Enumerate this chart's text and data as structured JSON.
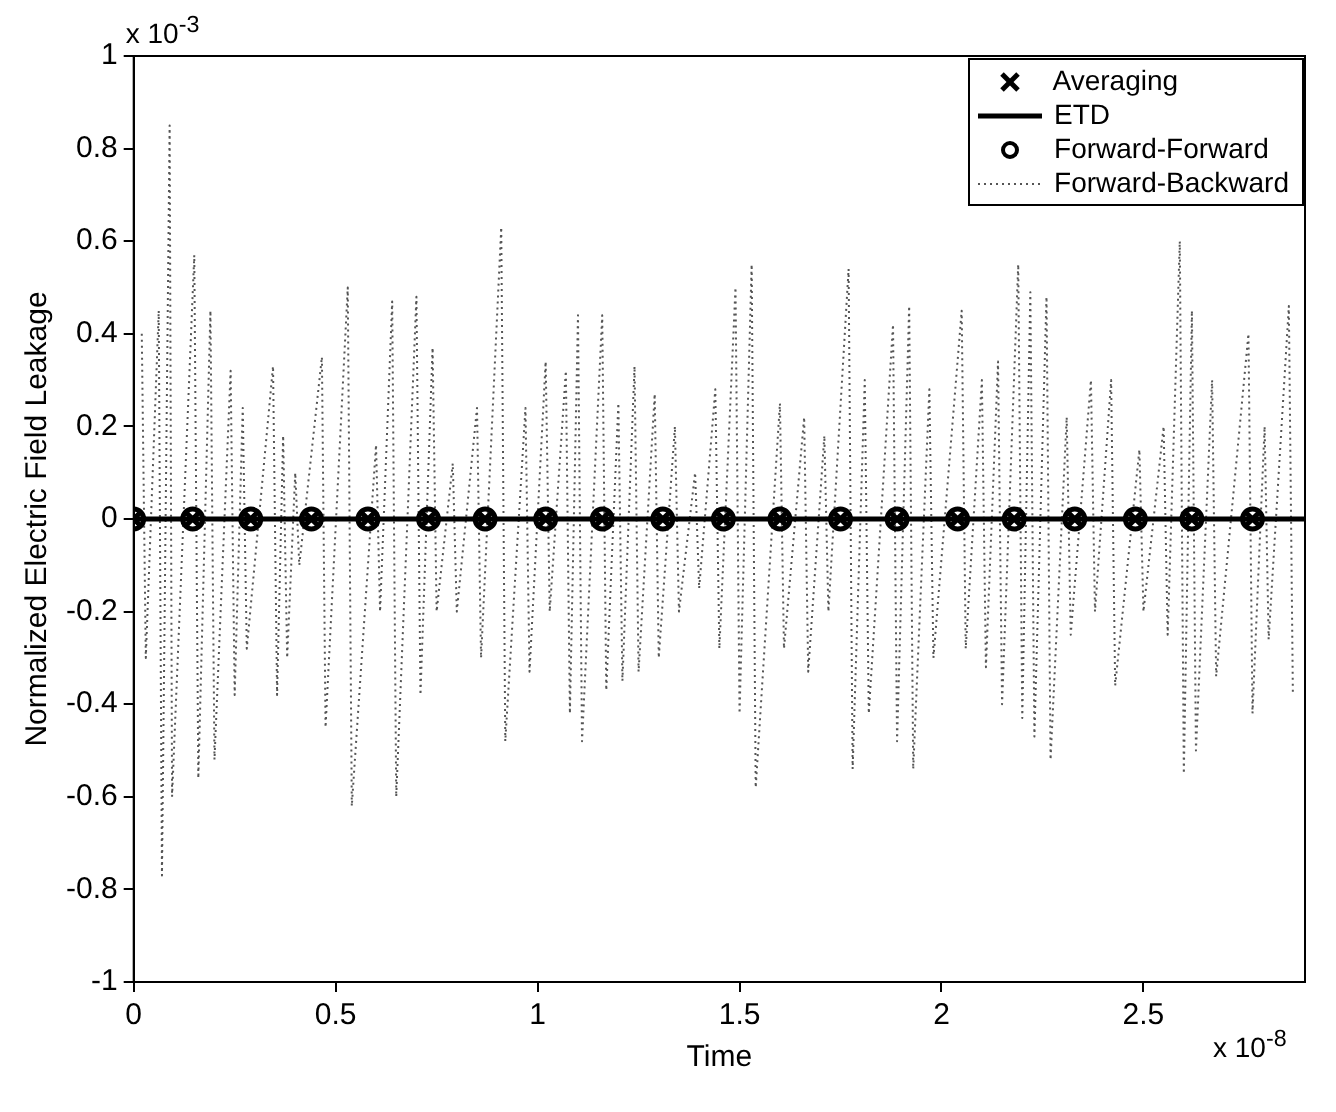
{
  "chart_data": {
    "type": "line",
    "xlabel": "Time",
    "ylabel": "Normalized Electric Field Leakage",
    "annotations": [
      "x 10$^{-3}$",
      "x 10$^{-8}$"
    ],
    "xlim": [
      0,
      2.9
    ],
    "xticks": [
      0,
      0.5,
      1,
      1.5,
      2,
      2.5
    ],
    "ylim": [
      -1,
      1
    ],
    "yticks": [
      -1,
      -0.8,
      -0.6,
      -0.4,
      -0.2,
      0,
      0.2,
      0.4,
      0.6,
      0.8,
      1
    ],
    "grid": false,
    "legend": "top right",
    "series": [
      {
        "name": "Forward-Backward",
        "type": "line",
        "line_style": "dotted",
        "marker": "none",
        "color": "#555555",
        "x": [
          0.02,
          0.03,
          0.062,
          0.07,
          0.089,
          0.095,
          0.15,
          0.16,
          0.19,
          0.2,
          0.24,
          0.25,
          0.27,
          0.28,
          0.345,
          0.355,
          0.37,
          0.38,
          0.4,
          0.41,
          0.466,
          0.475,
          0.53,
          0.54,
          0.6,
          0.61,
          0.64,
          0.65,
          0.7,
          0.71,
          0.74,
          0.75,
          0.79,
          0.8,
          0.85,
          0.86,
          0.91,
          0.92,
          0.97,
          0.98,
          1.02,
          1.03,
          1.07,
          1.08,
          1.1,
          1.11,
          1.16,
          1.17,
          1.2,
          1.21,
          1.24,
          1.25,
          1.29,
          1.3,
          1.34,
          1.35,
          1.39,
          1.4,
          1.44,
          1.45,
          1.49,
          1.5,
          1.53,
          1.54,
          1.6,
          1.61,
          1.66,
          1.67,
          1.71,
          1.72,
          1.77,
          1.78,
          1.81,
          1.82,
          1.88,
          1.89,
          1.92,
          1.93,
          1.97,
          1.98,
          2.05,
          2.06,
          2.1,
          2.11,
          2.14,
          2.15,
          2.19,
          2.2,
          2.22,
          2.23,
          2.26,
          2.27,
          2.31,
          2.32,
          2.37,
          2.38,
          2.42,
          2.43,
          2.49,
          2.5,
          2.55,
          2.56,
          2.59,
          2.6,
          2.62,
          2.63,
          2.67,
          2.68,
          2.76,
          2.77,
          2.8,
          2.81,
          2.86,
          2.87
        ],
        "values": [
          0.4,
          -0.3,
          0.45,
          -0.77,
          0.85,
          -0.6,
          0.57,
          -0.56,
          0.45,
          -0.52,
          0.32,
          -0.38,
          0.24,
          -0.28,
          0.33,
          -0.38,
          0.18,
          -0.3,
          0.1,
          -0.1,
          0.35,
          -0.45,
          0.5,
          -0.62,
          0.16,
          -0.2,
          0.47,
          -0.6,
          0.48,
          -0.38,
          0.37,
          -0.2,
          0.12,
          -0.2,
          0.24,
          -0.3,
          0.63,
          -0.48,
          0.24,
          -0.33,
          0.34,
          -0.2,
          0.32,
          -0.42,
          0.44,
          -0.48,
          0.44,
          -0.37,
          0.25,
          -0.35,
          0.33,
          -0.33,
          0.27,
          -0.3,
          0.2,
          -0.2,
          0.1,
          -0.15,
          0.28,
          -0.28,
          0.5,
          -0.42,
          0.55,
          -0.58,
          0.25,
          -0.28,
          0.22,
          -0.33,
          0.18,
          -0.2,
          0.54,
          -0.54,
          0.3,
          -0.42,
          0.42,
          -0.48,
          0.46,
          -0.54,
          0.28,
          -0.3,
          0.45,
          -0.28,
          0.3,
          -0.32,
          0.34,
          -0.4,
          0.55,
          -0.43,
          0.49,
          -0.47,
          0.48,
          -0.52,
          0.22,
          -0.25,
          0.3,
          -0.2,
          0.3,
          -0.36,
          0.15,
          -0.2,
          0.2,
          -0.25,
          0.6,
          -0.55,
          0.45,
          -0.5,
          0.3,
          -0.34,
          0.4,
          -0.42,
          0.2,
          -0.26,
          0.46,
          -0.38
        ]
      },
      {
        "name": "ETD",
        "type": "line",
        "line_style": "solid",
        "marker": "none",
        "color": "#000000",
        "x": [
          0,
          2.9
        ],
        "values": [
          0,
          0
        ]
      },
      {
        "name": "Averaging",
        "type": "scatter",
        "marker": "cross",
        "color": "#000000",
        "x": [
          0,
          0.146,
          0.29,
          0.44,
          0.58,
          0.73,
          0.87,
          1.02,
          1.16,
          1.31,
          1.46,
          1.6,
          1.75,
          1.89,
          2.04,
          2.18,
          2.33,
          2.48,
          2.62,
          2.77
        ],
        "values": [
          0,
          0,
          0,
          0,
          0,
          0,
          0,
          0,
          0,
          0,
          0,
          0,
          0,
          0,
          0,
          0,
          0,
          0,
          0,
          0
        ]
      },
      {
        "name": "Forward-Forward",
        "type": "scatter",
        "marker": "circle",
        "color": "#000000",
        "x": [
          0,
          0.146,
          0.29,
          0.44,
          0.58,
          0.73,
          0.87,
          1.02,
          1.16,
          1.31,
          1.46,
          1.6,
          1.75,
          1.89,
          2.04,
          2.18,
          2.33,
          2.48,
          2.62,
          2.77
        ],
        "values": [
          0,
          0,
          0,
          0,
          0,
          0,
          0,
          0,
          0,
          0,
          0,
          0,
          0,
          0,
          0,
          0,
          0,
          0,
          0,
          0
        ]
      }
    ]
  }
}
